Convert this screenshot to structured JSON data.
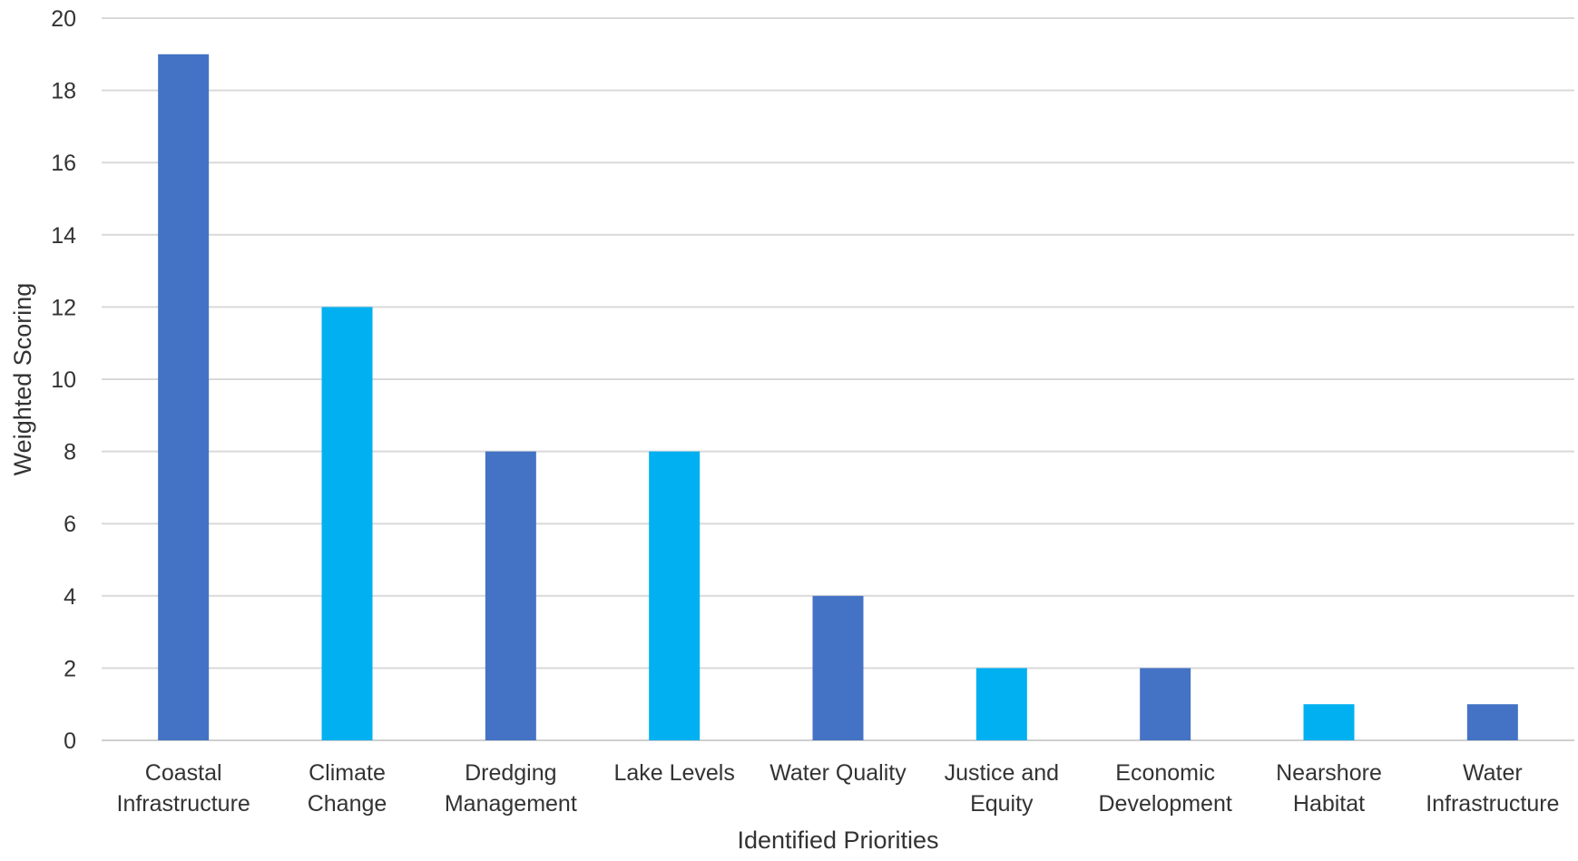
{
  "chart_data": {
    "type": "bar",
    "title": "",
    "xlabel": "Identified Priorities",
    "ylabel": "Weighted Scoring",
    "ylim": [
      0,
      20
    ],
    "yticks": [
      0,
      2,
      4,
      6,
      8,
      10,
      12,
      14,
      16,
      18,
      20
    ],
    "grid": true,
    "legend": "none",
    "categories": [
      [
        "Coastal",
        "Infrastructure"
      ],
      [
        "Climate",
        "Change"
      ],
      [
        "Dredging",
        "Management"
      ],
      [
        "Lake Levels"
      ],
      [
        "Water Quality"
      ],
      [
        "Justice and",
        "Equity"
      ],
      [
        "Economic",
        "Development"
      ],
      [
        "Nearshore",
        "Habitat"
      ],
      [
        "Water",
        "Infrastructure"
      ]
    ],
    "values": [
      19,
      12,
      8,
      8,
      4,
      2,
      2,
      1,
      1
    ],
    "bar_colors": [
      "#4472C4",
      "#00B0F0",
      "#4472C4",
      "#00B0F0",
      "#4472C4",
      "#00B0F0",
      "#4472C4",
      "#00B0F0",
      "#4472C4"
    ]
  }
}
